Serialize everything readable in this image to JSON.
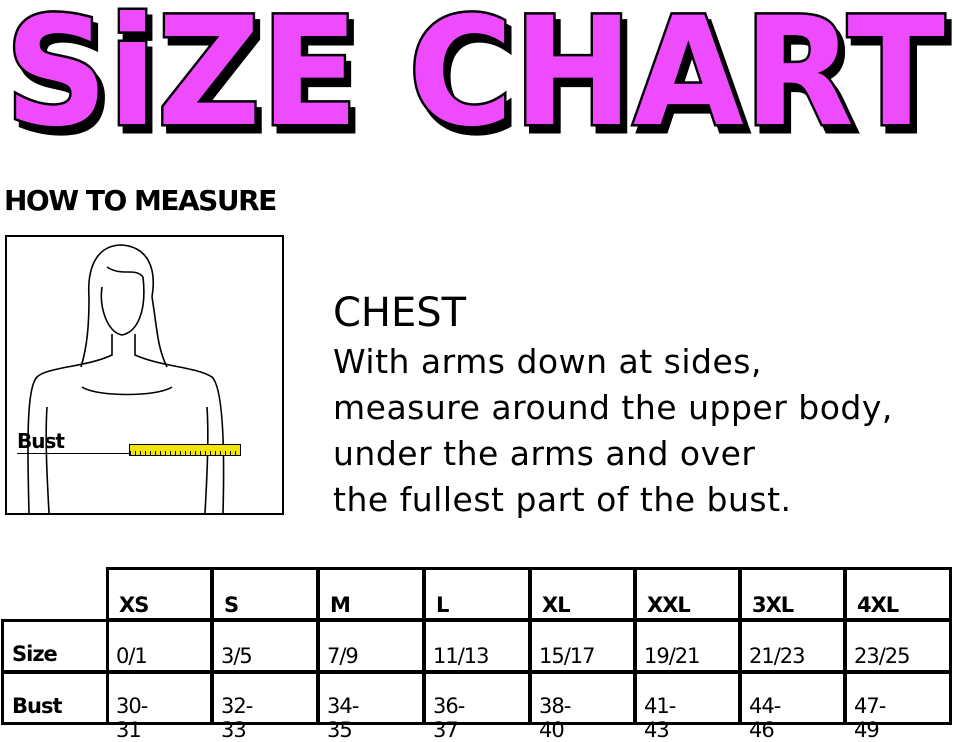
{
  "title": "SiZE CHART",
  "title_color": "#ee4cff",
  "how_to_measure": "HOW TO MEASURE",
  "illustration": {
    "bust_label": "Bust",
    "tape_color": "#f2e600"
  },
  "instructions": {
    "heading": "CHEST",
    "lines": [
      "With arms down at sides,",
      "measure around the upper body,",
      "under the arms and over",
      "the fullest part of the bust."
    ]
  },
  "table": {
    "columns": [
      "XS",
      "S",
      "M",
      "L",
      "XL",
      "XXL",
      "3XL",
      "4XL"
    ],
    "rows": [
      {
        "label": "Size",
        "values": [
          "0/1",
          "3/5",
          "7/9",
          "11/13",
          "15/17",
          "19/21",
          "21/23",
          "23/25"
        ]
      },
      {
        "label": "Bust",
        "values": [
          "30-31",
          "32-33",
          "34-35",
          "36-37",
          "38-40",
          "41-43",
          "44-46",
          "47-49"
        ]
      }
    ]
  }
}
